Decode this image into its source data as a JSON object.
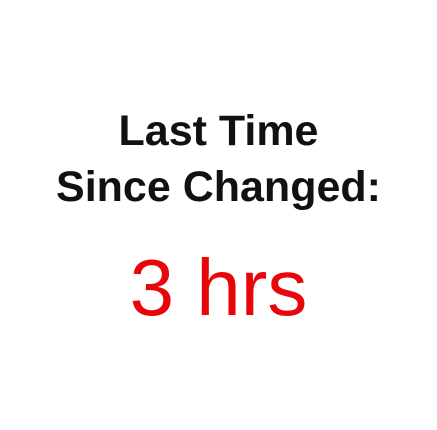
{
  "heading": {
    "line1": "Last Time",
    "line2": "Since Changed:"
  },
  "value": {
    "text": "3 hrs",
    "color": "#e8060b"
  },
  "colors": {
    "background": "#ffffff",
    "heading_text": "#111111"
  }
}
